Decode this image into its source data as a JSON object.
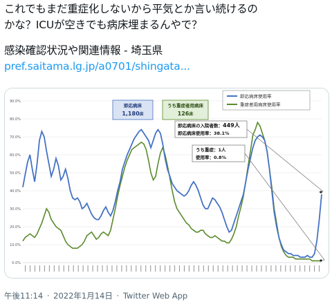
{
  "tweet": {
    "line1": "これでもまだ重症化しないから平気とか言い続けるの",
    "line2": "かな？ICUが空きでも病床埋まるんやで？",
    "line3": "感染確認状況や関連情報 - 埼玉県",
    "link": "pref.saitama.lg.jp/a0701/shingata..."
  },
  "meta": {
    "time": "午後11:14",
    "sep1": "·",
    "date": "2022年1月14日",
    "sep2": "·",
    "app": "Twitter Web App"
  },
  "chart_data": {
    "type": "line",
    "ylim": [
      0,
      90
    ],
    "yticks": [
      "0.0%",
      "10.0%",
      "20.0%",
      "30.0%",
      "40.0%",
      "50.0%",
      "60.0%",
      "70.0%",
      "80.0%",
      "90.0%"
    ],
    "legend": [
      "即応病床使用率",
      "重症者用病床使用率"
    ],
    "boxes": {
      "blue_title": "即応病床",
      "blue_value": "1,180",
      "blue_unit": "床",
      "green_title": "うち重症者用病床",
      "green_value": "126",
      "green_unit": "床"
    },
    "annotation1": {
      "line1_label": "即応病床の入院者数：",
      "line1_value": "449人",
      "line2_label": "即応病床使用率：",
      "line2_value": "38.1%"
    },
    "annotation2": {
      "line1_label": "うち重症：",
      "line1_value": "1人",
      "line2_label": "使用率：",
      "line2_value": "0.8%"
    },
    "series": [
      {
        "name": "即応病床使用率",
        "color": "#4472c4",
        "values": [
          42,
          49,
          56,
          60,
          52,
          45,
          55,
          68,
          73,
          70,
          62,
          55,
          48,
          52,
          58,
          54,
          46,
          48,
          52,
          47,
          40,
          36,
          35,
          36,
          34,
          30,
          31,
          33,
          30,
          27,
          25,
          24,
          24,
          26,
          29,
          31,
          28,
          26,
          29,
          34,
          40,
          45,
          52,
          56,
          60,
          63,
          66,
          69,
          71,
          73,
          74,
          72,
          70,
          68,
          64,
          68,
          72,
          74,
          72,
          66,
          58,
          52,
          48,
          44,
          42,
          40,
          39,
          38,
          37,
          38,
          40,
          43,
          45,
          43,
          40,
          36,
          32,
          30,
          30,
          33,
          36,
          35,
          33,
          31,
          28,
          24,
          20,
          17,
          18,
          22,
          26,
          30,
          34,
          38,
          45,
          52,
          58,
          64,
          68,
          70,
          71,
          70,
          68,
          62,
          52,
          40,
          28,
          20,
          14,
          10,
          7,
          6,
          5,
          5,
          4,
          4,
          4,
          3,
          3,
          3,
          4,
          3,
          3,
          5,
          12,
          24,
          38
        ]
      },
      {
        "name": "重症者用病床使用率",
        "color": "#5a8a2b",
        "values": [
          12,
          14,
          15,
          16,
          15,
          14,
          16,
          19,
          22,
          26,
          30,
          28,
          24,
          22,
          20,
          19,
          18,
          15,
          12,
          10,
          9,
          8,
          8,
          8,
          9,
          10,
          12,
          15,
          16,
          17,
          15,
          13,
          14,
          16,
          17,
          16,
          15,
          18,
          24,
          30,
          37,
          43,
          48,
          53,
          57,
          60,
          63,
          64,
          65,
          66,
          67,
          66,
          63,
          57,
          50,
          46,
          48,
          55,
          61,
          64,
          60,
          54,
          47,
          40,
          34,
          30,
          28,
          26,
          24,
          22,
          21,
          19,
          18,
          17,
          17,
          18,
          18,
          16,
          15,
          14,
          14,
          15,
          14,
          13,
          12,
          12,
          11,
          11,
          13,
          16,
          20,
          26,
          31,
          37,
          45,
          54,
          62,
          71,
          74,
          78,
          76,
          72,
          68,
          62,
          52,
          42,
          30,
          22,
          14,
          9,
          6,
          4,
          3,
          3,
          3,
          2,
          2,
          2,
          2,
          2,
          2,
          2,
          1,
          1,
          1,
          1,
          1
        ]
      }
    ]
  }
}
